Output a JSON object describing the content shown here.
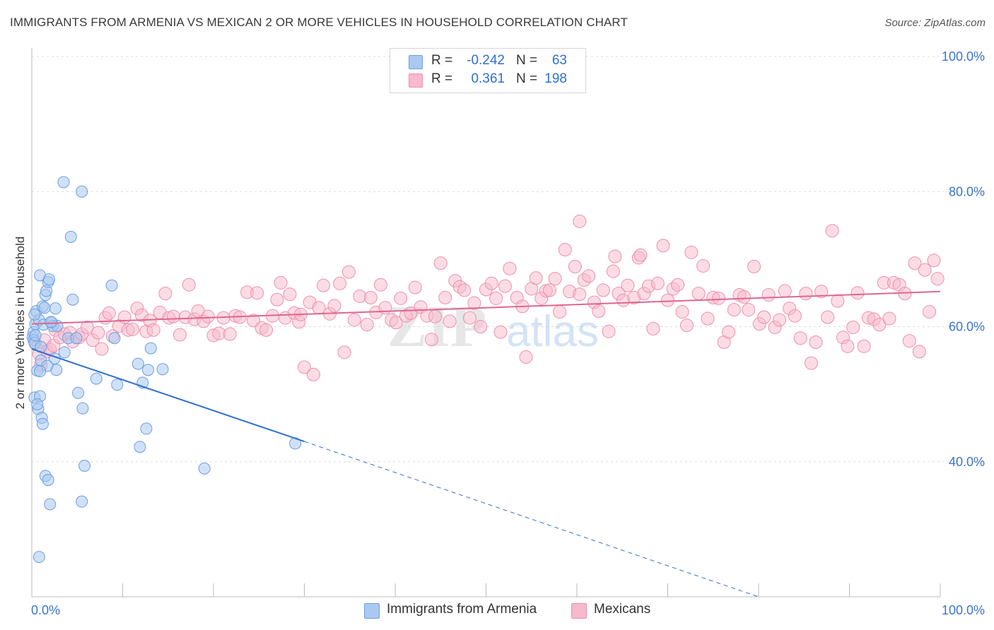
{
  "header": {
    "title": "IMMIGRANTS FROM ARMENIA VS MEXICAN 2 OR MORE VEHICLES IN HOUSEHOLD CORRELATION CHART",
    "source": "Source: ZipAtlas.com"
  },
  "legend": {
    "rows": [
      {
        "r_label": "R =",
        "r_value": "-0.242",
        "n_label": "N =",
        "n_value": "63"
      },
      {
        "r_label": "R =",
        "r_value": "0.361",
        "n_label": "N =",
        "n_value": "198"
      }
    ]
  },
  "bottom_legend": {
    "armenia": "Immigrants from Armenia",
    "mexicans": "Mexicans"
  },
  "watermark": {
    "zip": "ZIP",
    "atlas": "atlas"
  },
  "colors": {
    "armenia_fill": "#aac8f0",
    "armenia_stroke": "#6a9fe0",
    "armenia_line": "#2f6fd1",
    "mexicans_fill": "#f7b9cc",
    "mexicans_stroke": "#ee8fad",
    "mexicans_line": "#e0668f",
    "tick_label": "#3b74cc",
    "grid": "#dcdcdc"
  },
  "chart_data": {
    "type": "scatter",
    "title": "IMMIGRANTS FROM ARMENIA VS MEXICAN 2 OR MORE VEHICLES IN HOUSEHOLD CORRELATION CHART",
    "xlabel": "",
    "ylabel": "2 or more Vehicles in Household",
    "xlim": [
      0,
      100
    ],
    "ylim": [
      20,
      100
    ],
    "x_tick_labels": [
      "0.0%",
      "100.0%"
    ],
    "y_ticks": [
      40,
      60,
      80,
      100
    ],
    "y_tick_labels": [
      "40.0%",
      "60.0%",
      "80.0%",
      "100.0%"
    ],
    "grid": true,
    "legend_position": "top-center",
    "series": [
      {
        "name": "Immigrants from Armenia",
        "points": [
          [
            0.1,
            58.5
          ],
          [
            0.2,
            59.2
          ],
          [
            0.2,
            58.0
          ],
          [
            0.3,
            57.6
          ],
          [
            0.3,
            49.5
          ],
          [
            0.4,
            60.4
          ],
          [
            0.5,
            62.3
          ],
          [
            0.6,
            53.5
          ],
          [
            0.7,
            47.8
          ],
          [
            0.8,
            61.0
          ],
          [
            0.9,
            49.7
          ],
          [
            0.9,
            67.6
          ],
          [
            1.0,
            55.0
          ],
          [
            1.1,
            46.5
          ],
          [
            1.2,
            63.0
          ],
          [
            1.2,
            45.6
          ],
          [
            1.3,
            60.3
          ],
          [
            1.4,
            62.8
          ],
          [
            1.5,
            64.7
          ],
          [
            1.5,
            37.9
          ],
          [
            1.6,
            65.3
          ],
          [
            1.8,
            66.6
          ],
          [
            1.8,
            37.3
          ],
          [
            1.9,
            67.0
          ],
          [
            2.0,
            33.7
          ],
          [
            2.2,
            60.6
          ],
          [
            2.3,
            60.1
          ],
          [
            2.6,
            62.7
          ],
          [
            2.7,
            53.6
          ],
          [
            2.8,
            60.1
          ],
          [
            3.5,
            81.4
          ],
          [
            3.6,
            56.2
          ],
          [
            4.0,
            58.3
          ],
          [
            4.3,
            73.3
          ],
          [
            4.5,
            64.0
          ],
          [
            4.9,
            58.3
          ],
          [
            5.1,
            50.2
          ],
          [
            5.5,
            34.1
          ],
          [
            5.5,
            80.0
          ],
          [
            5.6,
            47.9
          ],
          [
            5.8,
            39.4
          ],
          [
            7.1,
            52.3
          ],
          [
            8.8,
            66.1
          ],
          [
            9.1,
            58.3
          ],
          [
            9.4,
            51.4
          ],
          [
            11.7,
            54.5
          ],
          [
            11.9,
            42.2
          ],
          [
            12.2,
            51.7
          ],
          [
            12.6,
            44.9
          ],
          [
            12.8,
            53.6
          ],
          [
            13.1,
            56.8
          ],
          [
            14.4,
            53.7
          ],
          [
            19.0,
            39.0
          ],
          [
            29.0,
            42.7
          ],
          [
            0.8,
            25.9
          ],
          [
            0.4,
            58.7
          ],
          [
            1.0,
            57.0
          ],
          [
            2.5,
            55.3
          ],
          [
            0.6,
            48.5
          ],
          [
            1.7,
            54.2
          ],
          [
            0.3,
            61.8
          ],
          [
            2.1,
            60.7
          ],
          [
            0.9,
            53.4
          ]
        ],
        "trend_solid": [
          [
            0,
            56.7
          ],
          [
            30,
            43.0
          ]
        ],
        "trend_dashed": [
          [
            30,
            43.0
          ],
          [
            80,
            20
          ]
        ]
      },
      {
        "name": "Mexicans",
        "points": [
          [
            0.4,
            57.5
          ],
          [
            0.8,
            56.0
          ],
          [
            1.0,
            54.3
          ],
          [
            1.4,
            58.0
          ],
          [
            1.7,
            56.3
          ],
          [
            2.0,
            56.6
          ],
          [
            2.4,
            57.2
          ],
          [
            2.6,
            59.5
          ],
          [
            3.1,
            58.4
          ],
          [
            3.6,
            58.9
          ],
          [
            4.2,
            59.1
          ],
          [
            4.5,
            57.8
          ],
          [
            5.2,
            58.4
          ],
          [
            5.5,
            58.9
          ],
          [
            6.1,
            59.9
          ],
          [
            6.7,
            58.0
          ],
          [
            7.3,
            59.1
          ],
          [
            7.7,
            56.7
          ],
          [
            8.1,
            61.3
          ],
          [
            8.5,
            62.0
          ],
          [
            8.9,
            58.6
          ],
          [
            9.6,
            60.1
          ],
          [
            10.2,
            61.4
          ],
          [
            10.6,
            59.5
          ],
          [
            11.1,
            59.6
          ],
          [
            11.6,
            62.7
          ],
          [
            12.1,
            61.7
          ],
          [
            12.6,
            59.3
          ],
          [
            13.0,
            60.9
          ],
          [
            13.4,
            59.5
          ],
          [
            14.1,
            62.1
          ],
          [
            14.7,
            64.9
          ],
          [
            15.1,
            61.3
          ],
          [
            15.6,
            61.5
          ],
          [
            16.3,
            58.8
          ],
          [
            16.9,
            61.4
          ],
          [
            17.3,
            66.2
          ],
          [
            17.9,
            61.1
          ],
          [
            18.3,
            62.3
          ],
          [
            18.9,
            60.8
          ],
          [
            19.4,
            61.5
          ],
          [
            20.0,
            58.7
          ],
          [
            20.6,
            59.0
          ],
          [
            21.1,
            61.3
          ],
          [
            21.8,
            58.9
          ],
          [
            22.4,
            61.6
          ],
          [
            22.9,
            61.4
          ],
          [
            23.7,
            65.1
          ],
          [
            24.4,
            60.9
          ],
          [
            24.8,
            65.0
          ],
          [
            25.3,
            59.8
          ],
          [
            25.8,
            59.5
          ],
          [
            26.5,
            61.6
          ],
          [
            27.0,
            64.0
          ],
          [
            27.4,
            66.5
          ],
          [
            27.9,
            61.3
          ],
          [
            28.4,
            64.8
          ],
          [
            28.9,
            62.0
          ],
          [
            29.4,
            60.7
          ],
          [
            29.6,
            61.8
          ],
          [
            30.0,
            54.0
          ],
          [
            30.6,
            63.6
          ],
          [
            31.0,
            52.9
          ],
          [
            31.6,
            62.8
          ],
          [
            32.1,
            66.1
          ],
          [
            32.8,
            61.9
          ],
          [
            33.3,
            63.1
          ],
          [
            33.9,
            66.4
          ],
          [
            34.4,
            56.2
          ],
          [
            34.9,
            68.1
          ],
          [
            35.5,
            61.0
          ],
          [
            36.1,
            64.5
          ],
          [
            36.9,
            60.3
          ],
          [
            37.3,
            64.3
          ],
          [
            37.9,
            62.1
          ],
          [
            38.4,
            66.2
          ],
          [
            38.9,
            62.8
          ],
          [
            39.6,
            61.0
          ],
          [
            40.1,
            60.6
          ],
          [
            40.6,
            64.2
          ],
          [
            41.2,
            61.6
          ],
          [
            41.7,
            62.0
          ],
          [
            42.2,
            65.8
          ],
          [
            42.8,
            62.9
          ],
          [
            43.5,
            61.6
          ],
          [
            44.0,
            58.1
          ],
          [
            44.4,
            61.5
          ],
          [
            45.0,
            69.4
          ],
          [
            45.5,
            64.3
          ],
          [
            46.0,
            60.8
          ],
          [
            46.6,
            66.8
          ],
          [
            47.1,
            65.9
          ],
          [
            47.6,
            65.4
          ],
          [
            48.2,
            61.3
          ],
          [
            48.7,
            63.5
          ],
          [
            49.4,
            60.0
          ],
          [
            50.0,
            65.5
          ],
          [
            50.6,
            66.4
          ],
          [
            51.1,
            64.2
          ],
          [
            51.6,
            59.2
          ],
          [
            52.1,
            66.0
          ],
          [
            52.6,
            68.6
          ],
          [
            53.4,
            64.3
          ],
          [
            54.0,
            63.0
          ],
          [
            54.4,
            55.5
          ],
          [
            55.0,
            65.6
          ],
          [
            55.5,
            67.2
          ],
          [
            56.1,
            64.2
          ],
          [
            56.6,
            65.3
          ],
          [
            57.0,
            65.4
          ],
          [
            57.6,
            67.1
          ],
          [
            58.1,
            62.2
          ],
          [
            58.7,
            71.4
          ],
          [
            59.2,
            65.2
          ],
          [
            59.8,
            68.9
          ],
          [
            60.3,
            64.8
          ],
          [
            60.8,
            66.9
          ],
          [
            61.3,
            67.5
          ],
          [
            61.9,
            63.6
          ],
          [
            62.4,
            62.3
          ],
          [
            62.9,
            65.4
          ],
          [
            63.5,
            59.3
          ],
          [
            64.0,
            68.2
          ],
          [
            64.6,
            64.9
          ],
          [
            65.1,
            63.9
          ],
          [
            65.6,
            66.1
          ],
          [
            66.3,
            64.3
          ],
          [
            66.8,
            70.2
          ],
          [
            67.4,
            64.9
          ],
          [
            67.9,
            66.0
          ],
          [
            68.4,
            59.7
          ],
          [
            68.9,
            66.4
          ],
          [
            69.5,
            72.0
          ],
          [
            70.0,
            63.9
          ],
          [
            70.6,
            65.6
          ],
          [
            71.1,
            66.2
          ],
          [
            71.6,
            62.2
          ],
          [
            72.1,
            60.2
          ],
          [
            72.6,
            71.0
          ],
          [
            73.4,
            64.9
          ],
          [
            73.9,
            69.0
          ],
          [
            74.4,
            61.2
          ],
          [
            75.0,
            64.3
          ],
          [
            75.6,
            64.2
          ],
          [
            76.2,
            57.7
          ],
          [
            76.7,
            59.2
          ],
          [
            77.3,
            62.5
          ],
          [
            77.9,
            64.7
          ],
          [
            78.4,
            64.4
          ],
          [
            78.9,
            62.5
          ],
          [
            79.5,
            68.9
          ],
          [
            80.1,
            60.4
          ],
          [
            80.6,
            61.4
          ],
          [
            81.1,
            64.7
          ],
          [
            81.8,
            59.9
          ],
          [
            82.3,
            61.0
          ],
          [
            82.9,
            65.3
          ],
          [
            83.4,
            62.7
          ],
          [
            84.0,
            61.6
          ],
          [
            84.6,
            58.3
          ],
          [
            85.2,
            64.9
          ],
          [
            85.8,
            54.6
          ],
          [
            86.3,
            57.7
          ],
          [
            86.9,
            65.2
          ],
          [
            87.6,
            61.4
          ],
          [
            88.1,
            74.2
          ],
          [
            88.7,
            63.8
          ],
          [
            89.3,
            58.4
          ],
          [
            89.8,
            57.1
          ],
          [
            90.4,
            59.9
          ],
          [
            90.9,
            65.0
          ],
          [
            91.6,
            57.1
          ],
          [
            92.1,
            61.3
          ],
          [
            92.7,
            61.1
          ],
          [
            93.3,
            60.3
          ],
          [
            93.8,
            66.5
          ],
          [
            94.4,
            61.2
          ],
          [
            94.9,
            66.5
          ],
          [
            95.5,
            66.2
          ],
          [
            96.1,
            64.9
          ],
          [
            96.6,
            57.9
          ],
          [
            97.2,
            69.4
          ],
          [
            97.7,
            56.3
          ],
          [
            98.3,
            68.4
          ],
          [
            98.8,
            62.2
          ],
          [
            99.3,
            69.8
          ],
          [
            99.7,
            67.1
          ],
          [
            60.3,
            75.6
          ],
          [
            64.2,
            70.4
          ],
          [
            67.0,
            70.6
          ]
        ],
        "trend_solid": [
          [
            0,
            60.4
          ],
          [
            100,
            65.2
          ]
        ]
      }
    ]
  }
}
